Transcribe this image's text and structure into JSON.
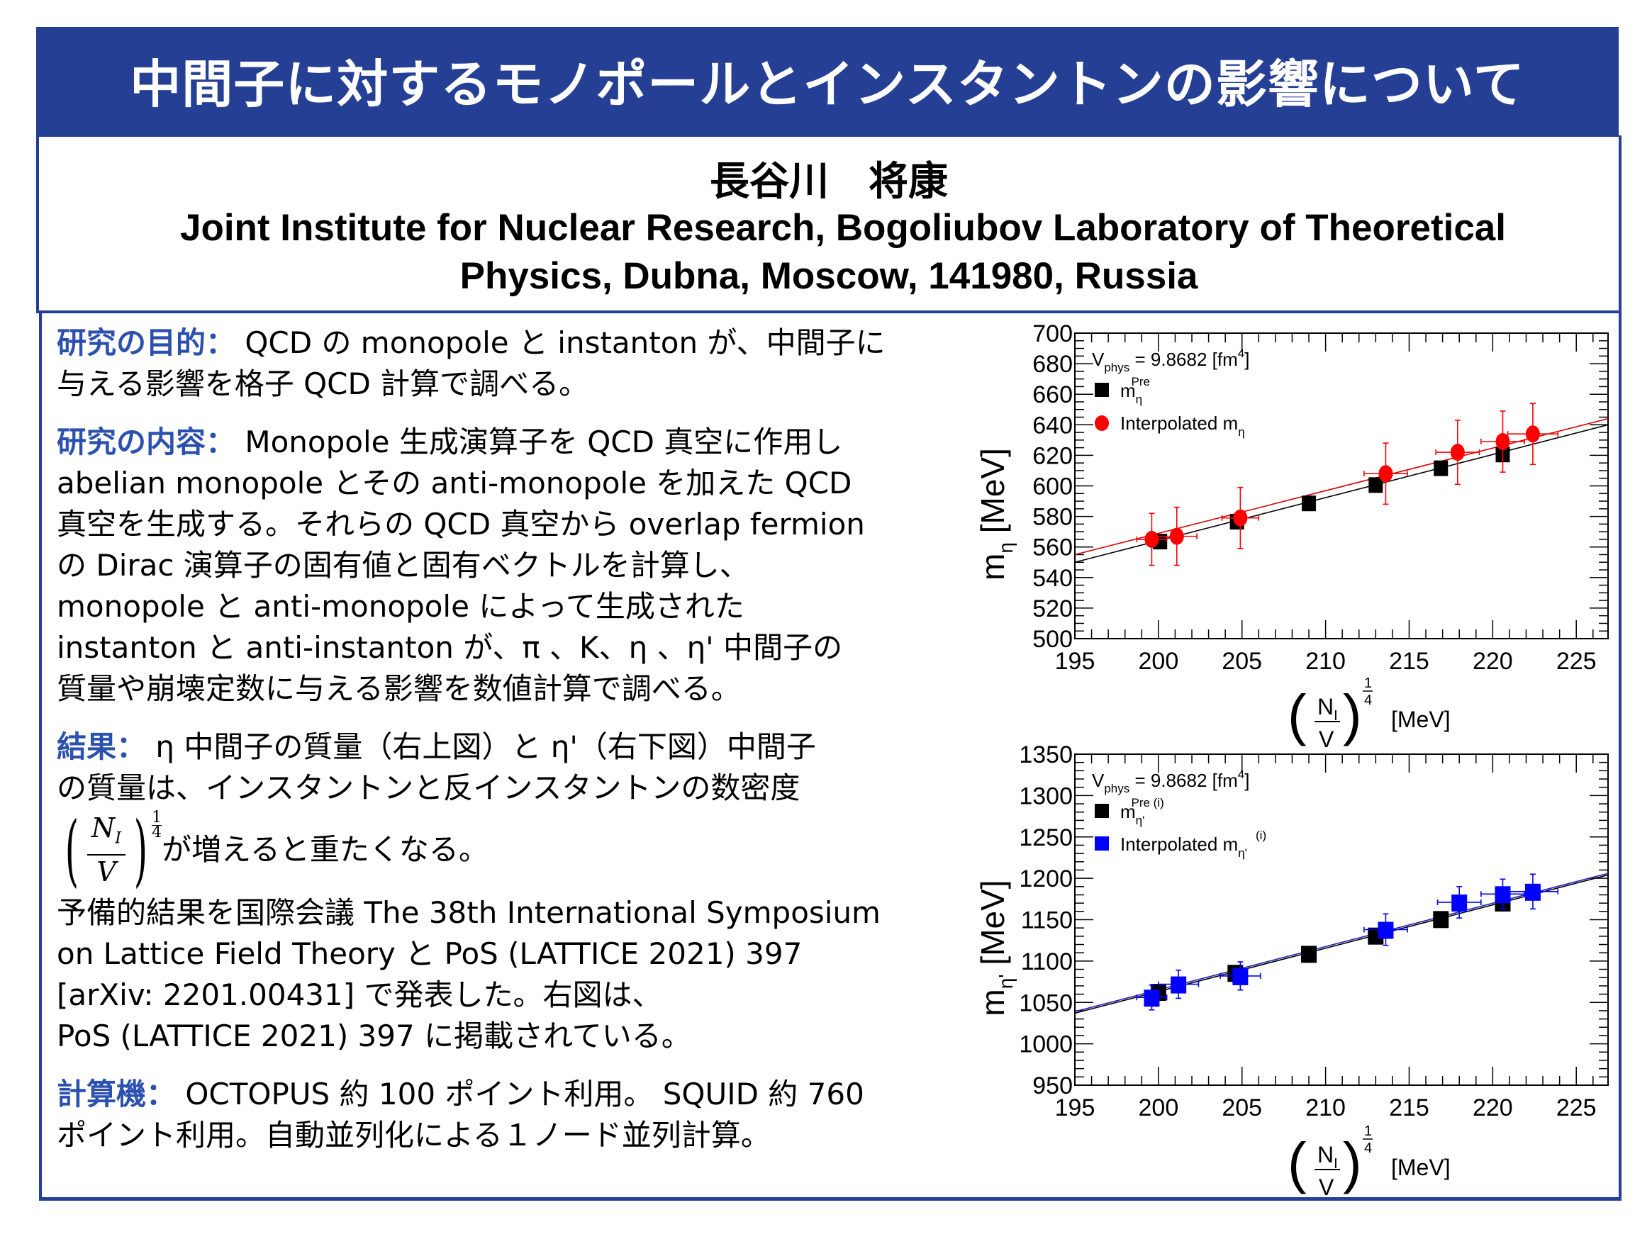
{
  "header": {
    "title": "中間子に対するモノポールとインスタントンの影響について",
    "author": "長谷川　将康",
    "affiliation_line1": "Joint Institute for Nuclear Research, Bogoliubov Laboratory of Theoretical",
    "affiliation_line2": "Physics, Dubna, Moscow, 141980, Russia"
  },
  "sections": {
    "purpose": {
      "heading": "研究の目的：",
      "line1": "QCD の monopole と instanton が、中間子に",
      "line2": "与える影響を格子 QCD 計算で調べる。"
    },
    "content": {
      "heading": "研究の内容：",
      "lines": [
        "Monopole 生成演算子を QCD  真空に作用し",
        "abelian monopole とその anti-monopole を加えた QCD",
        "真空を生成する。それらの QCD 真空から overlap fermion",
        "の Dirac 演算子の固有値と固有ベクトルを計算し、",
        "monopole と anti-monopole によって生成された",
        "instanton と anti-instanton が、π 、K、η 、η' 中間子の",
        "質量や崩壊定数に与える影響を数値計算で調べる。"
      ]
    },
    "results": {
      "heading": "結果：",
      "line1": "η 中間子の質量（右上図）と η'（右下図）中間子",
      "line2": "の質量は、インスタントンと反インスタントンの数密度",
      "frac_num": "N",
      "frac_num_sub": "I",
      "frac_den": "V",
      "frac_exp_num": "1",
      "frac_exp_den": "4",
      "line3": "が増えると重たくなる。",
      "lines_after": [
        "予備的結果を国際会議 The 38th International Symposium",
        "on Lattice Field Theory と PoS (LATTICE 2021) 397",
        "[arXiv: 2201.00431] で発表した。右図は、",
        "PoS (LATTICE 2021) 397 に掲載されている。"
      ]
    },
    "computer": {
      "heading": "計算機：",
      "line1": "OCTOPUS 約 100 ポイント利用。 SQUID 約 760",
      "line2": "ポイント利用。自動並列化による１ノード並列計算。"
    }
  },
  "colors": {
    "brand": "#253f95",
    "heading": "#2b50b0",
    "red_series": "#ff0000",
    "blue_series": "#0000ff"
  },
  "chart_data": [
    {
      "type": "scatter",
      "title": "",
      "annotation": {
        "text": "V",
        "sub": "phys",
        "rest": " = 9.8682 [fm",
        "sup": "4",
        "end": "]"
      },
      "xlabel": {
        "num": "N",
        "num_sub": "I",
        "den": "V",
        "exp": "1/4",
        "exp_num": "1",
        "exp_den": "4",
        "unit": "[MeV]"
      },
      "ylabel": {
        "main": "m",
        "sub": "η",
        "unit": " [MeV]"
      },
      "xlim": [
        195,
        226.9
      ],
      "ylim": [
        500,
        700
      ],
      "xticks": [
        "195",
        "200",
        "205",
        "210",
        "215",
        "220",
        "225"
      ],
      "yticks": [
        "500",
        "520",
        "540",
        "560",
        "580",
        "600",
        "620",
        "640",
        "660",
        "680",
        "700"
      ],
      "legend_position": "top-left",
      "series": [
        {
          "name": "m_η^Pre",
          "label_main": "m",
          "label_sub": "η",
          "label_sup": "Pre",
          "marker": "square",
          "color": "#000000",
          "x": [
            200.1,
            204.7,
            209.0,
            213.0,
            216.9,
            220.6
          ],
          "y": [
            564,
            577,
            589,
            601,
            612,
            621
          ],
          "fit": [
            [
              195,
              550
            ],
            [
              226.9,
              640
            ]
          ]
        },
        {
          "name": "Interpolated m_η",
          "label_main": "Interpolated m",
          "label_sub": "η",
          "label_sup": "",
          "marker": "circle",
          "color": "#ff0000",
          "x": [
            199.6,
            201.1,
            204.9,
            213.6,
            217.9,
            220.6,
            222.4
          ],
          "y": [
            565,
            567,
            579,
            608,
            622,
            629,
            634
          ],
          "xerr": [
            0.9,
            1.2,
            1.1,
            1.3,
            1.3,
            1.3,
            1.5
          ],
          "yerr": [
            17,
            19,
            20,
            20,
            21,
            20,
            20
          ],
          "fit": [
            [
              195,
              555
            ],
            [
              226.9,
              644
            ]
          ]
        }
      ]
    },
    {
      "type": "scatter",
      "title": "",
      "annotation": {
        "text": "V",
        "sub": "phys",
        "rest": " = 9.8682 [fm",
        "sup": "4",
        "end": "]"
      },
      "xlabel": {
        "num": "N",
        "num_sub": "I",
        "den": "V",
        "exp": "1/4",
        "exp_num": "1",
        "exp_den": "4",
        "unit": "[MeV]"
      },
      "ylabel": {
        "main": "m",
        "sub": "η'",
        "unit": " [MeV]"
      },
      "xlim": [
        195,
        226.9
      ],
      "ylim": [
        950,
        1350
      ],
      "xticks": [
        "195",
        "200",
        "205",
        "210",
        "215",
        "220",
        "225"
      ],
      "yticks": [
        "950",
        "1000",
        "1050",
        "1100",
        "1150",
        "1200",
        "1250",
        "1300",
        "1350"
      ],
      "legend_position": "top-left",
      "series": [
        {
          "name": "m_η'^Pre (i)",
          "label_main": "m",
          "label_sub": "η'",
          "label_sup": "Pre (i)",
          "marker": "square",
          "color": "#000000",
          "x": [
            200.0,
            204.6,
            209.0,
            213.0,
            216.9,
            220.6
          ],
          "y": [
            1063,
            1086,
            1109,
            1131,
            1151,
            1171
          ],
          "fit": [
            [
              195,
              1037
            ],
            [
              226.9,
              1204
            ]
          ]
        },
        {
          "name": "Interpolated m_η'^(i)",
          "label_main": "Interpolated m",
          "label_sub": "η'",
          "label_sup": "(i)",
          "marker": "square",
          "color": "#0000ff",
          "x": [
            199.6,
            201.2,
            204.9,
            213.6,
            218.0,
            220.6,
            222.4
          ],
          "y": [
            1056,
            1072,
            1082,
            1138,
            1171,
            1181,
            1184
          ],
          "xerr": [
            0.9,
            1.2,
            1.2,
            1.3,
            1.3,
            1.3,
            1.5
          ],
          "yerr": [
            15,
            17,
            17,
            19,
            19,
            18,
            21
          ],
          "fit": [
            [
              195,
              1039
            ],
            [
              226.9,
              1206
            ]
          ]
        }
      ]
    }
  ]
}
